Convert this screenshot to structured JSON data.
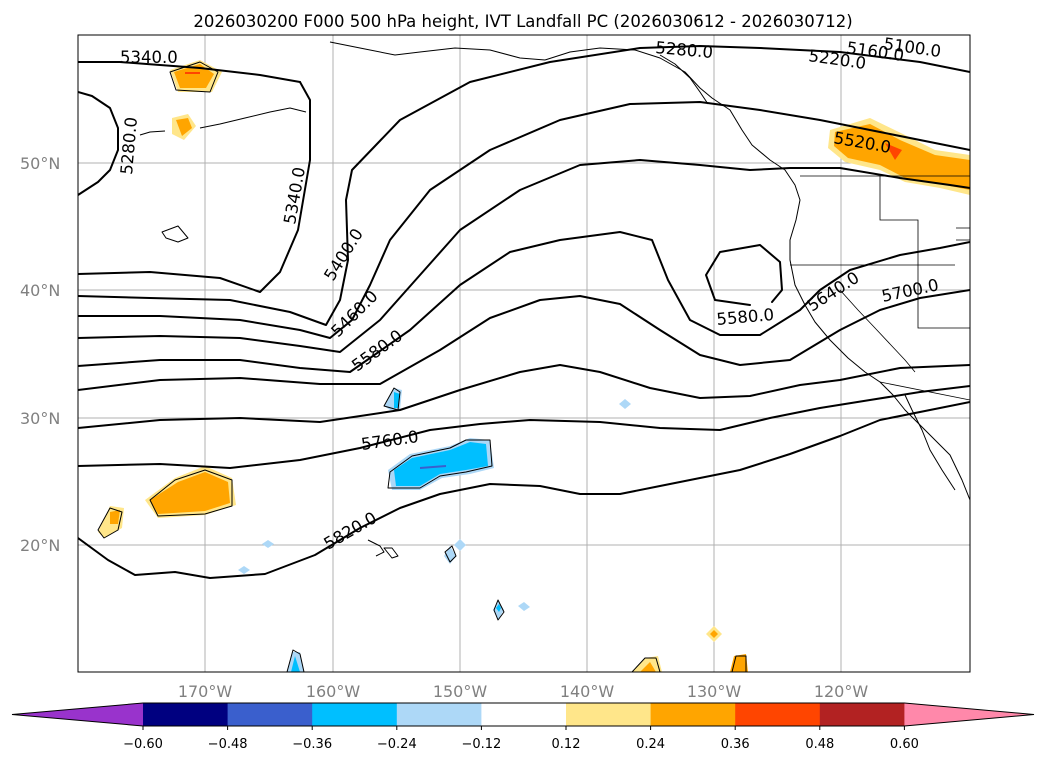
{
  "title": "2026030200 F000 500 hPa height, IVT Landfall PC (2026030612 - 2026030712)",
  "lat_labels": [
    "50°N",
    "40°N",
    "30°N",
    "20°N"
  ],
  "lon_labels": [
    "170°W",
    "160°W",
    "150°W",
    "140°W",
    "130°W",
    "120°W"
  ],
  "contour_labels": [
    "5340.0",
    "5280.0",
    "5340.0",
    "5400.0",
    "5460.0",
    "5580.0",
    "5760.0",
    "5820.0",
    "5280.0",
    "5220.0",
    "5160.0",
    "5100.0",
    "5520.0",
    "5580.0",
    "5640.0",
    "5700.0"
  ],
  "colorbar": {
    "ticks": [
      "−0.60",
      "−0.48",
      "−0.36",
      "−0.24",
      "−0.12",
      "0.12",
      "0.24",
      "0.36",
      "0.48",
      "0.60"
    ],
    "colors": [
      "#9933cc",
      "#000080",
      "#3a5fcd",
      "#00bfff",
      "#add8f7",
      "#ffffff",
      "#ffe68a",
      "#ffa500",
      "#ff4500",
      "#b22222",
      "#ff88aa"
    ]
  },
  "colors": {
    "orange": "#ffa500",
    "light_orange": "#ffe68a",
    "red_orange": "#ff4500",
    "cyan": "#00bfff",
    "light_blue": "#add8f7",
    "blue": "#3a5fcd"
  }
}
